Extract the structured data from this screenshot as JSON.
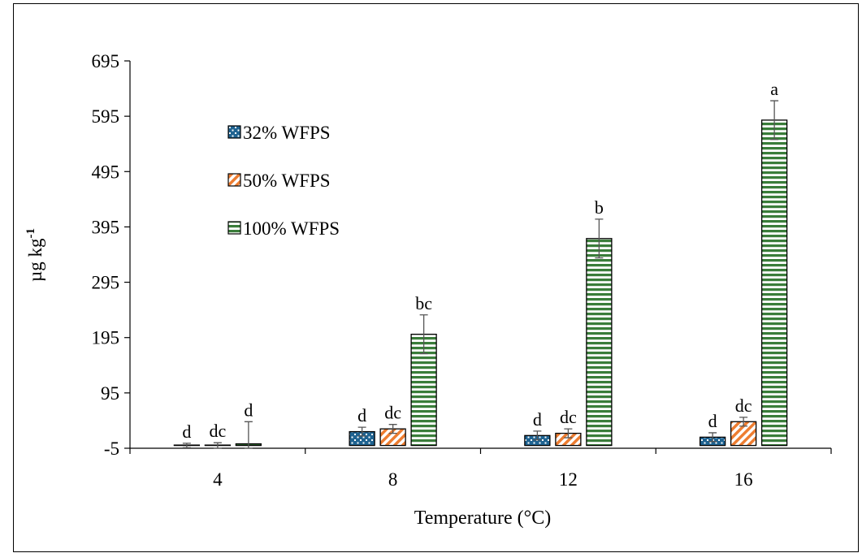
{
  "chart_data": {
    "type": "bar",
    "title": "",
    "xlabel": "Temperature (°C)",
    "ylabel": "µg kg",
    "ylabel_superscript": "-1",
    "ylim": [
      -5,
      695
    ],
    "yticks": [
      -5,
      95,
      195,
      295,
      395,
      495,
      595,
      695
    ],
    "categories": [
      "4",
      "8",
      "12",
      "16"
    ],
    "legend_position": "upper-left",
    "series": [
      {
        "name": "32% WFPS",
        "pattern": "dots",
        "color": "#1f6391",
        "values": [
          0,
          25,
          18,
          15
        ],
        "errors": [
          4,
          8,
          8,
          8
        ],
        "letters": [
          "d",
          "d",
          "d",
          "d"
        ]
      },
      {
        "name": "50% WFPS",
        "pattern": "diagonal-stripes",
        "color": "#ed7d31",
        "values": [
          0,
          30,
          22,
          43
        ],
        "errors": [
          5,
          8,
          8,
          8
        ],
        "letters": [
          "dc",
          "dc",
          "dc",
          "dc"
        ]
      },
      {
        "name": "100% WFPS",
        "pattern": "horizontal-stripes",
        "color": "#3a7d3a",
        "values": [
          3,
          201,
          374,
          588
        ],
        "errors": [
          40,
          35,
          35,
          35
        ],
        "letters": [
          "d",
          "bc",
          "b",
          "a"
        ]
      }
    ]
  }
}
